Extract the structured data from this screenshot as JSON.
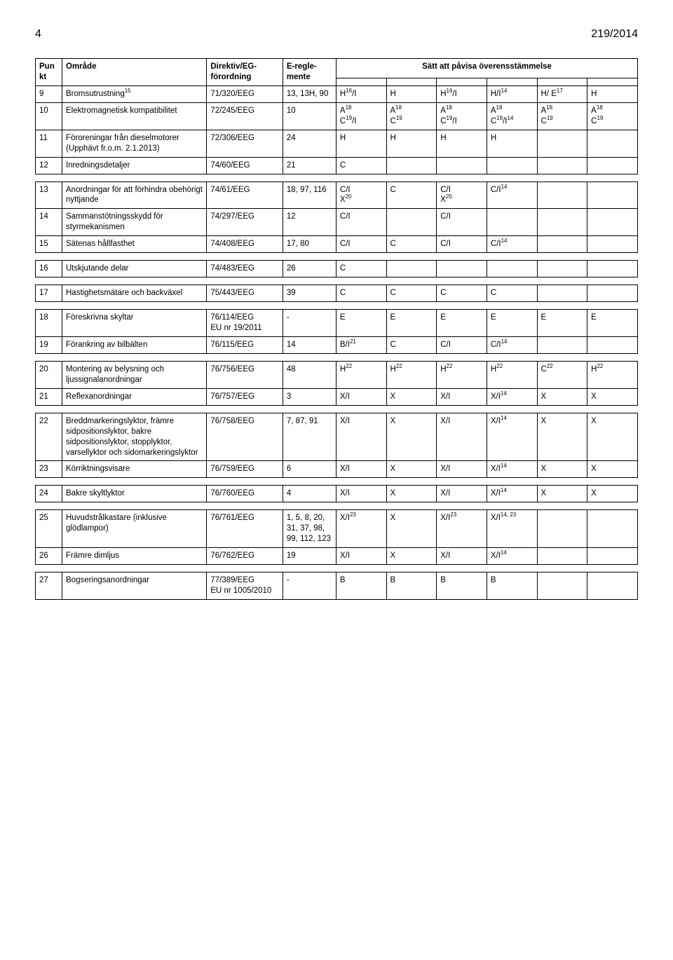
{
  "page_number": "4",
  "doc_id": "219/2014",
  "headers": {
    "punkt": "Pun\nkt",
    "omrade": "Område",
    "direktiv": "Direktiv/EG-förordning",
    "eregl": "E-regle-mente",
    "satt": "Sätt att påvisa överensstämmelse"
  },
  "rows": [
    {
      "n": "9",
      "omrade": "Bromsutrustning<sup>15</sup>",
      "dir": "71/320/EEG",
      "er": "13, 13H, 90",
      "c1": "H<sup>16</sup>/I",
      "c2": "H",
      "c3": "H<sup>16</sup>/I",
      "c4": "H/I<sup>14</sup>",
      "c5": "H/ E<sup>17</sup>",
      "c6": "H"
    },
    {
      "n": "10",
      "omrade": "Elektromagnetisk kompatibilitet",
      "dir": "72/245/EEG",
      "er": "10",
      "c1": "A<sup>18</sup><br>C<sup>19</sup>/I",
      "c2": "A<sup>18</sup><br>C<sup>19</sup>",
      "c3": "A<sup>18</sup><br>C<sup>19</sup>/I",
      "c4": "A<sup>18</sup><br>C<sup>19</sup>/I<sup>14</sup>",
      "c5": "A<sup>18</sup><br>C<sup>19</sup>",
      "c6": "A<sup>18</sup><br>C<sup>19</sup>"
    },
    {
      "n": "11",
      "omrade": "Föroreningar från dieselmotorer (Upphävt fr.o.m. 2.1.2013)",
      "dir": "72/306/EEG",
      "er": "24",
      "c1": "H",
      "c2": "H",
      "c3": "H",
      "c4": "H",
      "c5": "",
      "c6": ""
    },
    {
      "n": "12",
      "omrade": "Inredningsdetaljer",
      "dir": "74/60/EEG",
      "er": "21",
      "c1": "C",
      "c2": "",
      "c3": "",
      "c4": "",
      "c5": "",
      "c6": ""
    },
    {
      "n": "13",
      "omrade": "Anordningar för att förhindra obehörigt nyttjande",
      "dir": "74/61/EEG",
      "er": "18, 97, 116",
      "c1": "C/I<br>X<sup>20</sup>",
      "c2": "C",
      "c3": "C/I<br>X<sup>20</sup>",
      "c4": "C/I<sup>14</sup>",
      "c5": "",
      "c6": ""
    },
    {
      "n": "14",
      "omrade": "Sammanstötningsskydd för styrmekanismen",
      "dir": "74/297/EEG",
      "er": "12",
      "c1": "C/I",
      "c2": "",
      "c3": "C/I",
      "c4": "",
      "c5": "",
      "c6": ""
    },
    {
      "n": "15",
      "omrade": "Sätenas hållfasthet",
      "dir": "74/408/EEG",
      "er": "17, 80",
      "c1": "C/I",
      "c2": "C",
      "c3": "C/I",
      "c4": "C/I<sup>14</sup>",
      "c5": "",
      "c6": ""
    },
    {
      "n": "16",
      "omrade": "Utskjutande delar",
      "dir": "74/483/EEG",
      "er": "26",
      "c1": "C",
      "c2": "",
      "c3": "",
      "c4": "",
      "c5": "",
      "c6": ""
    },
    {
      "n": "17",
      "omrade": "Hastighetsmätare och backväxel",
      "dir": "75/443/EEG",
      "er": "39",
      "c1": "C",
      "c2": "C",
      "c3": "C",
      "c4": "C",
      "c5": "",
      "c6": ""
    },
    {
      "n": "18",
      "omrade": "Föreskrivna skyltar",
      "dir": "76/114/EEG<br>EU nr 19/2011",
      "er": "-",
      "c1": "E",
      "c2": "E",
      "c3": "E",
      "c4": "E",
      "c5": "E",
      "c6": "E"
    },
    {
      "n": "19",
      "omrade": "Förankring av bilbälten",
      "dir": "76/115/EEG",
      "er": "14",
      "c1": "B/I<sup>21</sup>",
      "c2": "C",
      "c3": "C/I",
      "c4": "C/I<sup>14</sup>",
      "c5": "",
      "c6": ""
    },
    {
      "n": "20",
      "omrade": "Montering av belysning och ljussignalanordningar",
      "dir": "76/756/EEG",
      "er": "48",
      "c1": "H<sup>22</sup>",
      "c2": "H<sup>22</sup>",
      "c3": "H<sup>22</sup>",
      "c4": "H<sup>22</sup>",
      "c5": "C<sup>22</sup>",
      "c6": "H<sup>22</sup>"
    },
    {
      "n": "21",
      "omrade": "Reflexanordningar",
      "dir": "76/757/EEG",
      "er": "3",
      "c1": "X/I",
      "c2": "X",
      "c3": "X/I",
      "c4": "X/I<sup>14</sup>",
      "c5": "X",
      "c6": "X"
    },
    {
      "n": "22",
      "omrade": "Breddmarkeringslyktor, främre sidpositionslyktor, bakre sidpositionslyktor, stopplyktor, varsellyktor och sidomarkeringslyktor",
      "dir": "76/758/EEG",
      "er": "7, 87, 91",
      "c1": "X/I",
      "c2": "X",
      "c3": "X/I",
      "c4": "X/I<sup>14</sup>",
      "c5": "X",
      "c6": "X"
    },
    {
      "n": "23",
      "omrade": "Körriktningsvisare",
      "dir": "76/759/EEG",
      "er": "6",
      "c1": "X/I",
      "c2": "X",
      "c3": "X/I",
      "c4": "X/I<sup>14</sup>",
      "c5": "X",
      "c6": "X"
    },
    {
      "n": "24",
      "omrade": "Bakre skyltlyktor",
      "dir": "76/760/EEG",
      "er": "4",
      "c1": "X/I",
      "c2": "X",
      "c3": "X/I",
      "c4": "X/I<sup>14</sup>",
      "c5": "X",
      "c6": "X"
    },
    {
      "n": "25",
      "omrade": "Huvudstrålkastare (inklusive glödlampor)",
      "dir": "76/761/EEG",
      "er": "1, 5, 8, 20, 31, 37, 98, 99, 112, 123",
      "c1": "X/I<sup>23</sup>",
      "c2": "X",
      "c3": "X/I<sup>23</sup>",
      "c4": "X/I<sup>14, 23</sup>",
      "c5": "",
      "c6": ""
    },
    {
      "n": "26",
      "omrade": "Främre dimljus",
      "dir": "76/762/EEG",
      "er": "19",
      "c1": "X/I",
      "c2": "X",
      "c3": "X/I",
      "c4": "X/I<sup>14</sup>",
      "c5": "",
      "c6": ""
    },
    {
      "n": "27",
      "omrade": "Bogseringsanordningar",
      "dir": "77/389/EEG<br>EU nr 1005/2010",
      "er": "-",
      "c1": "B",
      "c2": "B",
      "c3": "B",
      "c4": "B",
      "c5": "",
      "c6": ""
    }
  ],
  "group_breaks": [
    12,
    15,
    16,
    17,
    19,
    21,
    23,
    24,
    26
  ]
}
